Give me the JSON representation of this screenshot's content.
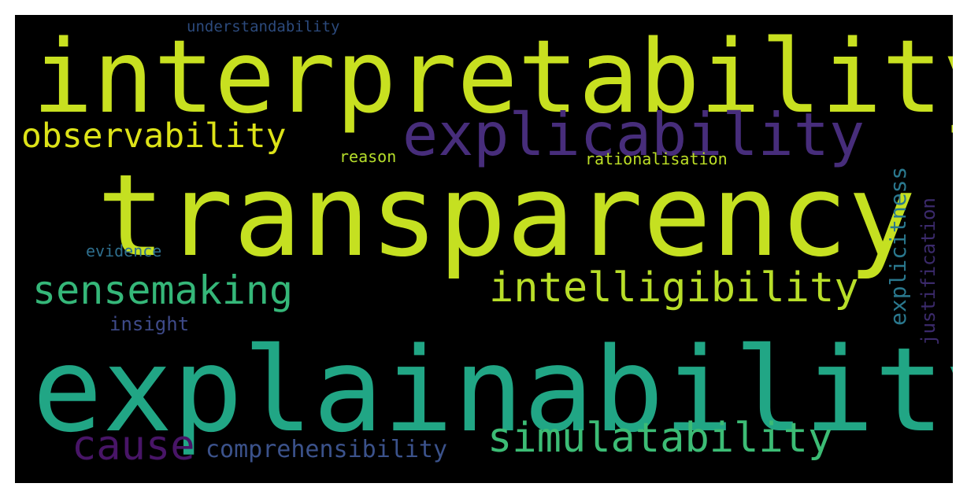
{
  "words": [
    {
      "key": "interpretability",
      "text": "interpretability",
      "color": "#c8e020"
    },
    {
      "key": "transparency",
      "text": "transparency",
      "color": "#c5e021"
    },
    {
      "key": "explainability",
      "text": "explainability",
      "color": "#21a685"
    },
    {
      "key": "explicability",
      "text": "explicability",
      "color": "#472d7b"
    },
    {
      "key": "observability",
      "text": "observability",
      "color": "#dde318"
    },
    {
      "key": "understandability",
      "text": "understandability",
      "color": "#2c4a7c"
    },
    {
      "key": "reason",
      "text": "reason",
      "color": "#b6de2b"
    },
    {
      "key": "rationalisation",
      "text": "rationalisation",
      "color": "#bddf26"
    },
    {
      "key": "evidence",
      "text": "evidence",
      "color": "#2e6f8e"
    },
    {
      "key": "sensemaking",
      "text": "sensemaking",
      "color": "#35b779"
    },
    {
      "key": "intelligibility",
      "text": "intelligibility",
      "color": "#b8de29"
    },
    {
      "key": "insight",
      "text": "insight",
      "color": "#3e4a89"
    },
    {
      "key": "explicitness",
      "text": "explicitness",
      "color": "#2a788e"
    },
    {
      "key": "justification",
      "text": "justification",
      "color": "#3b2a6b"
    },
    {
      "key": "cause",
      "text": "cause",
      "color": "#481567"
    },
    {
      "key": "comprehensibility",
      "text": "comprehensibility",
      "color": "#3b528b"
    },
    {
      "key": "simulatability",
      "text": "simulatability",
      "color": "#3cbc75"
    }
  ]
}
